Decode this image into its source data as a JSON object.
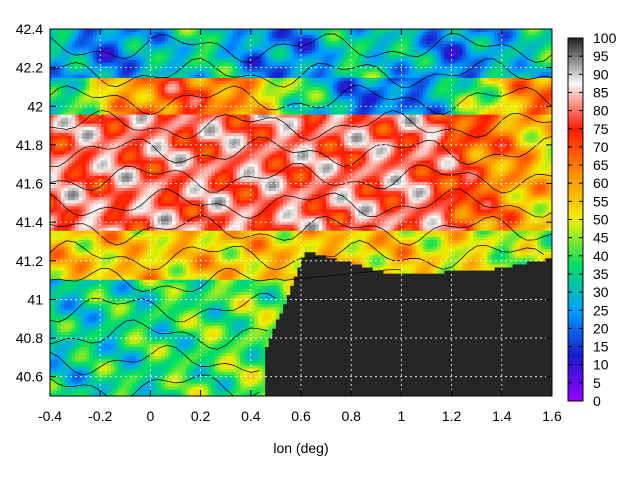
{
  "chart_data": {
    "type": "heatmap",
    "title": "",
    "xlabel": "lon (deg)",
    "ylabel": "",
    "xlim": [
      -0.4,
      1.6
    ],
    "ylim": [
      40.5,
      42.4
    ],
    "x_ticks": [
      "-0.4",
      "-0.2",
      "0",
      "0.2",
      "0.4",
      "0.6",
      "0.8",
      "1",
      "1.2",
      "1.4",
      "1.6"
    ],
    "y_ticks": [
      "40.6",
      "40.8",
      "41",
      "41.2",
      "41.4",
      "41.6",
      "41.8",
      "42",
      "42.2",
      "42.4"
    ],
    "colorbar": {
      "min": 0,
      "max": 100,
      "ticks": [
        "0",
        "5",
        "10",
        "15",
        "20",
        "25",
        "30",
        "35",
        "40",
        "45",
        "50",
        "55",
        "60",
        "65",
        "70",
        "75",
        "80",
        "85",
        "90",
        "95",
        "100"
      ],
      "colors": [
        "#9900ff",
        "#1a1acc",
        "#00a0ff",
        "#00e060",
        "#f0f000",
        "#ff9000",
        "#ff1a00",
        "#f8f8f8",
        "#202020"
      ]
    },
    "grid": true,
    "sea_color": "#262626",
    "field_description": [
      {
        "region": "north",
        "value_range": [
          15,
          40
        ]
      },
      {
        "region": "central-north",
        "value_range": [
          60,
          90
        ]
      },
      {
        "region": "central",
        "value_range": [
          70,
          95
        ]
      },
      {
        "region": "south-west",
        "value_range": [
          25,
          55
        ]
      },
      {
        "region": "sea (south-east)",
        "value": 100
      }
    ]
  }
}
